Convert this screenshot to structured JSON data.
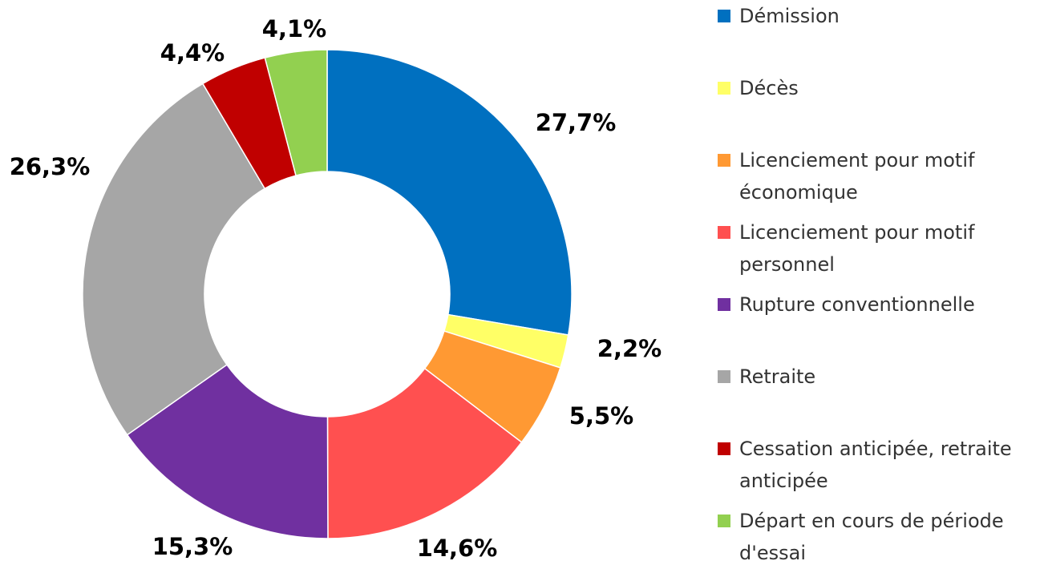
{
  "chart_data": {
    "type": "donut",
    "categories": [
      "Démission",
      "Décès",
      "Licenciement pour motif économique",
      "Licenciement pour motif personnel",
      "Rupture conventionnelle",
      "Retraite",
      "Cessation anticipée, retraite anticipée",
      "Départ en cours de période d'essai"
    ],
    "values": [
      27.7,
      2.2,
      5.5,
      14.6,
      15.3,
      26.3,
      4.4,
      4.1
    ],
    "value_labels": [
      "27,7%",
      "2,2%",
      "5,5%",
      "14,6%",
      "15,3%",
      "26,3%",
      "4,4%",
      "4,1%"
    ],
    "colors": [
      "#0070c0",
      "#ffff66",
      "#ff9933",
      "#ff5050",
      "#7030a0",
      "#a6a6a6",
      "#c00000",
      "#92d050"
    ],
    "legend": "right"
  }
}
